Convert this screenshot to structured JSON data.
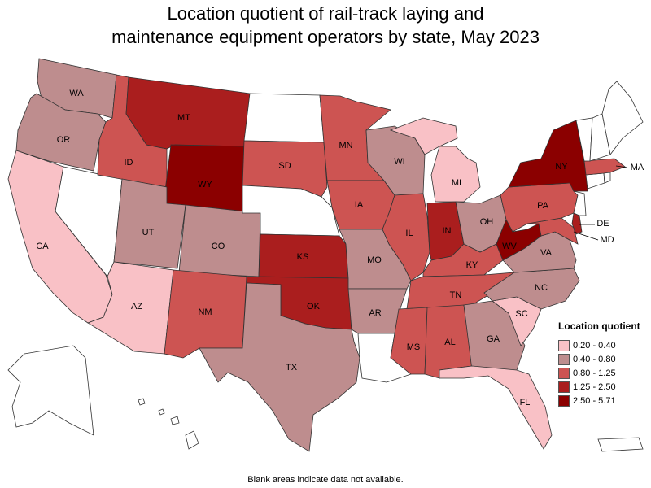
{
  "title_line1": "Location quotient of rail-track laying and",
  "title_line2": "maintenance equipment operators by state, May 2023",
  "legend": {
    "title": "Location quotient",
    "items": [
      {
        "label": "0.20 - 0.40",
        "color": "#f9c1c6"
      },
      {
        "label": "0.40 - 0.80",
        "color": "#be8d8e"
      },
      {
        "label": "0.80 - 1.25",
        "color": "#cd5452"
      },
      {
        "label": "1.25 - 2.50",
        "color": "#aa1e1e"
      },
      {
        "label": "2.50 - 5.71",
        "color": "#8b0000"
      }
    ]
  },
  "footnote": "Blank areas indicate data not available.",
  "states": {
    "WA": {
      "label": "WA",
      "bin": 1
    },
    "OR": {
      "label": "OR",
      "bin": 1
    },
    "CA": {
      "label": "CA",
      "bin": 0
    },
    "NV": {
      "label": "",
      "bin": -1
    },
    "ID": {
      "label": "ID",
      "bin": 2
    },
    "MT": {
      "label": "MT",
      "bin": 3
    },
    "WY": {
      "label": "WY",
      "bin": 4
    },
    "UT": {
      "label": "UT",
      "bin": 1
    },
    "CO": {
      "label": "CO",
      "bin": 1
    },
    "AZ": {
      "label": "AZ",
      "bin": 0
    },
    "NM": {
      "label": "NM",
      "bin": 2
    },
    "ND": {
      "label": "",
      "bin": -1
    },
    "SD": {
      "label": "SD",
      "bin": 2
    },
    "NE": {
      "label": "",
      "bin": -1
    },
    "KS": {
      "label": "KS",
      "bin": 3
    },
    "OK": {
      "label": "OK",
      "bin": 3
    },
    "TX": {
      "label": "TX",
      "bin": 1
    },
    "MN": {
      "label": "MN",
      "bin": 2
    },
    "IA": {
      "label": "IA",
      "bin": 2
    },
    "MO": {
      "label": "MO",
      "bin": 1
    },
    "AR": {
      "label": "AR",
      "bin": 1
    },
    "LA": {
      "label": "",
      "bin": -1
    },
    "WI": {
      "label": "WI",
      "bin": 1
    },
    "IL": {
      "label": "IL",
      "bin": 2
    },
    "MI": {
      "label": "MI",
      "bin": 0
    },
    "IN": {
      "label": "IN",
      "bin": 3
    },
    "OH": {
      "label": "OH",
      "bin": 1
    },
    "KY": {
      "label": "KY",
      "bin": 2
    },
    "TN": {
      "label": "TN",
      "bin": 2
    },
    "MS": {
      "label": "MS",
      "bin": 2
    },
    "AL": {
      "label": "AL",
      "bin": 2
    },
    "GA": {
      "label": "GA",
      "bin": 1
    },
    "FL": {
      "label": "FL",
      "bin": 0
    },
    "SC": {
      "label": "SC",
      "bin": 0
    },
    "NC": {
      "label": "NC",
      "bin": 1
    },
    "VA": {
      "label": "VA",
      "bin": 1
    },
    "WV": {
      "label": "WV",
      "bin": 4
    },
    "PA": {
      "label": "PA",
      "bin": 2
    },
    "NY": {
      "label": "NY",
      "bin": 4
    },
    "NJ": {
      "label": "",
      "bin": -1
    },
    "DE": {
      "label": "DE",
      "bin": 3
    },
    "MD": {
      "label": "MD",
      "bin": 2
    },
    "CT": {
      "label": "",
      "bin": -1
    },
    "RI": {
      "label": "",
      "bin": -1
    },
    "MA": {
      "label": "MA",
      "bin": 2
    },
    "VT": {
      "label": "",
      "bin": -1
    },
    "NH": {
      "label": "",
      "bin": -1
    },
    "ME": {
      "label": "",
      "bin": -1
    },
    "AK": {
      "label": "",
      "bin": -1
    },
    "HI": {
      "label": "",
      "bin": -1
    },
    "PR": {
      "label": "",
      "bin": -1
    }
  }
}
